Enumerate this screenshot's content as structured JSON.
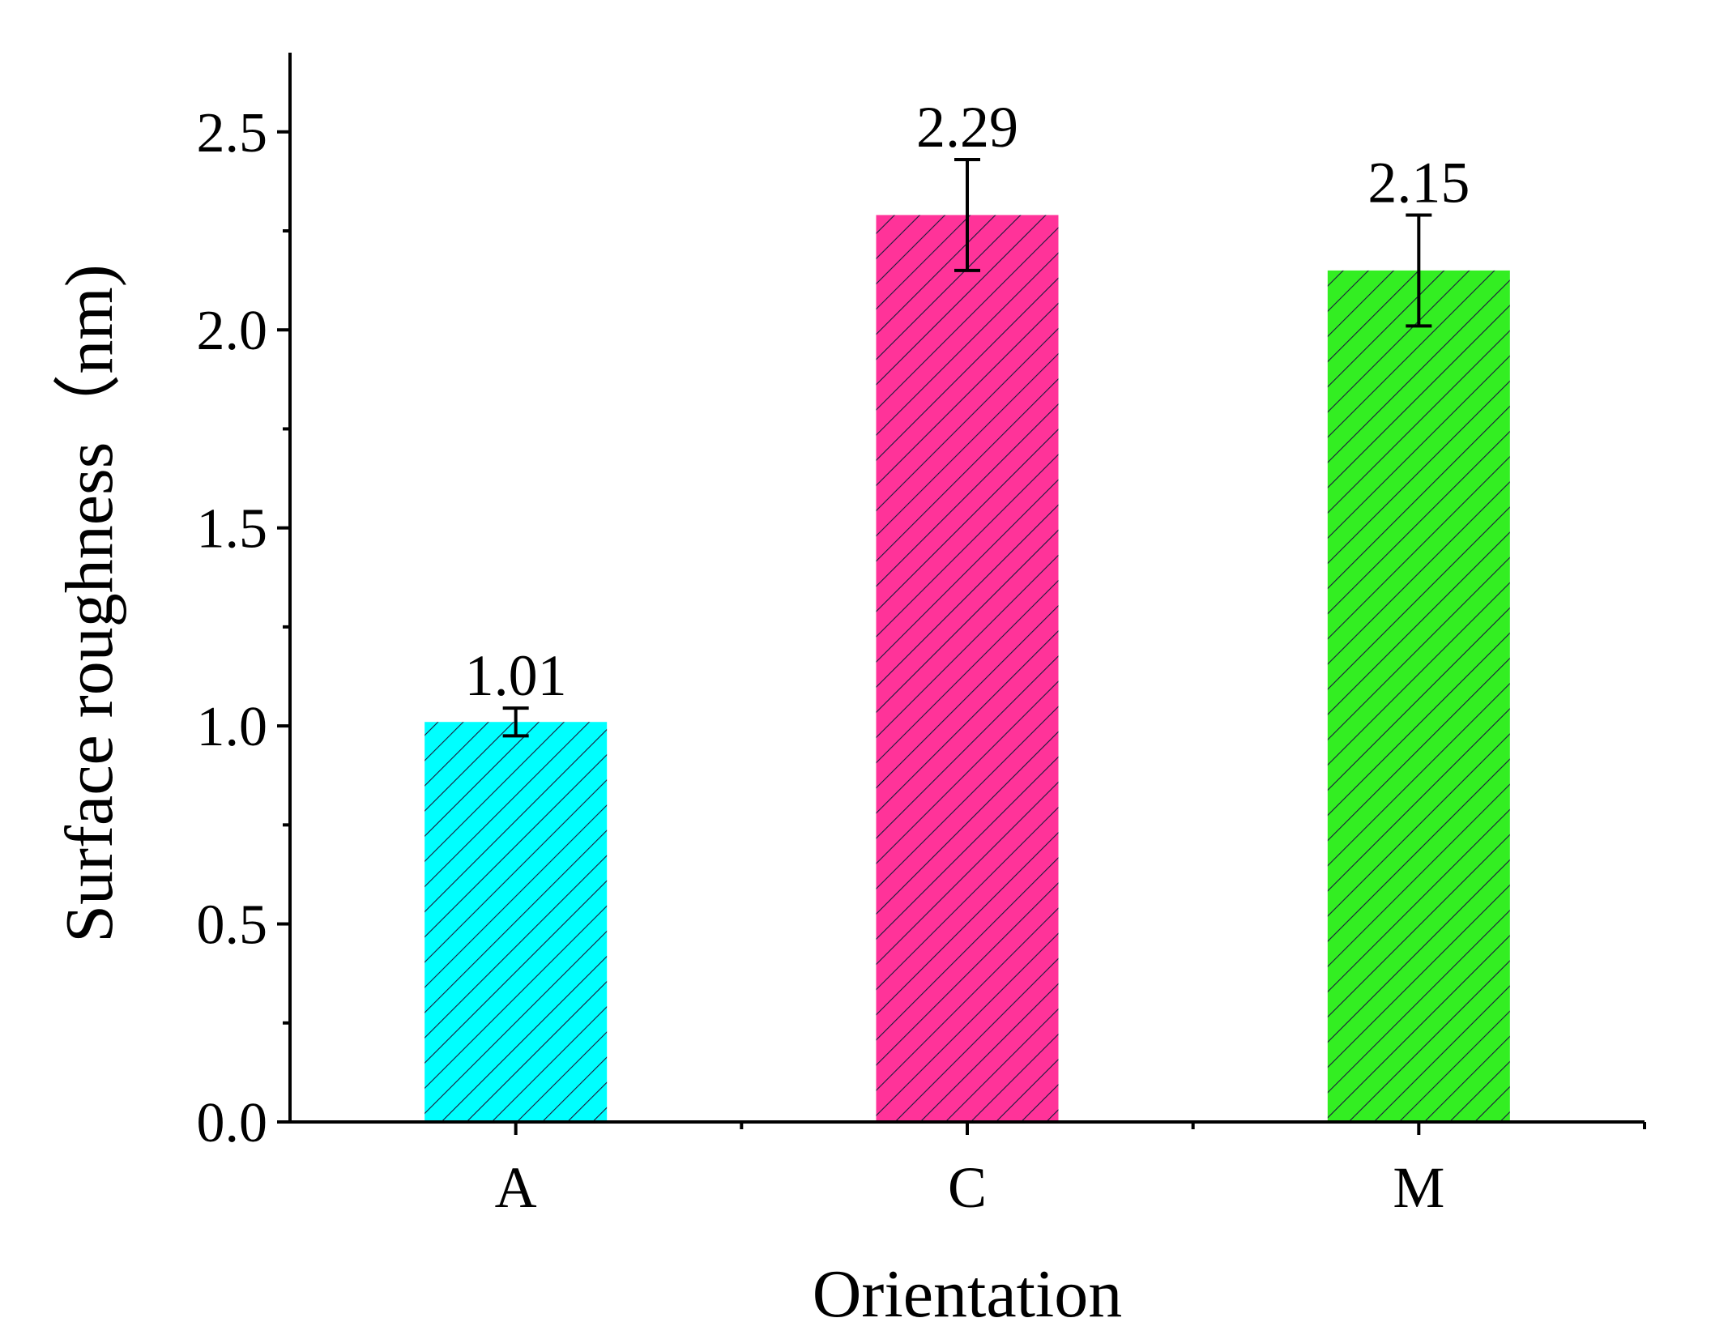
{
  "chart_data": {
    "type": "bar",
    "title": "",
    "xlabel": "Orientation",
    "ylabel": "Surface roughness（nm)",
    "categories": [
      "A",
      "C",
      "M"
    ],
    "values": [
      1.01,
      2.29,
      2.15
    ],
    "value_labels": [
      "1.01",
      "2.29",
      "2.15"
    ],
    "error": [
      0.035,
      0.14,
      0.14
    ],
    "colors": [
      "#00FFFF",
      "#FF3399",
      "#33EE22"
    ],
    "hatch": "diagonal",
    "ylim": [
      0,
      2.7
    ],
    "yticks": [
      0.0,
      0.5,
      1.0,
      1.5,
      2.0,
      2.5
    ],
    "ytick_labels": [
      "0.0",
      "0.5",
      "1.0",
      "1.5",
      "2.0",
      "2.5"
    ],
    "grid": false,
    "legend": "none"
  }
}
